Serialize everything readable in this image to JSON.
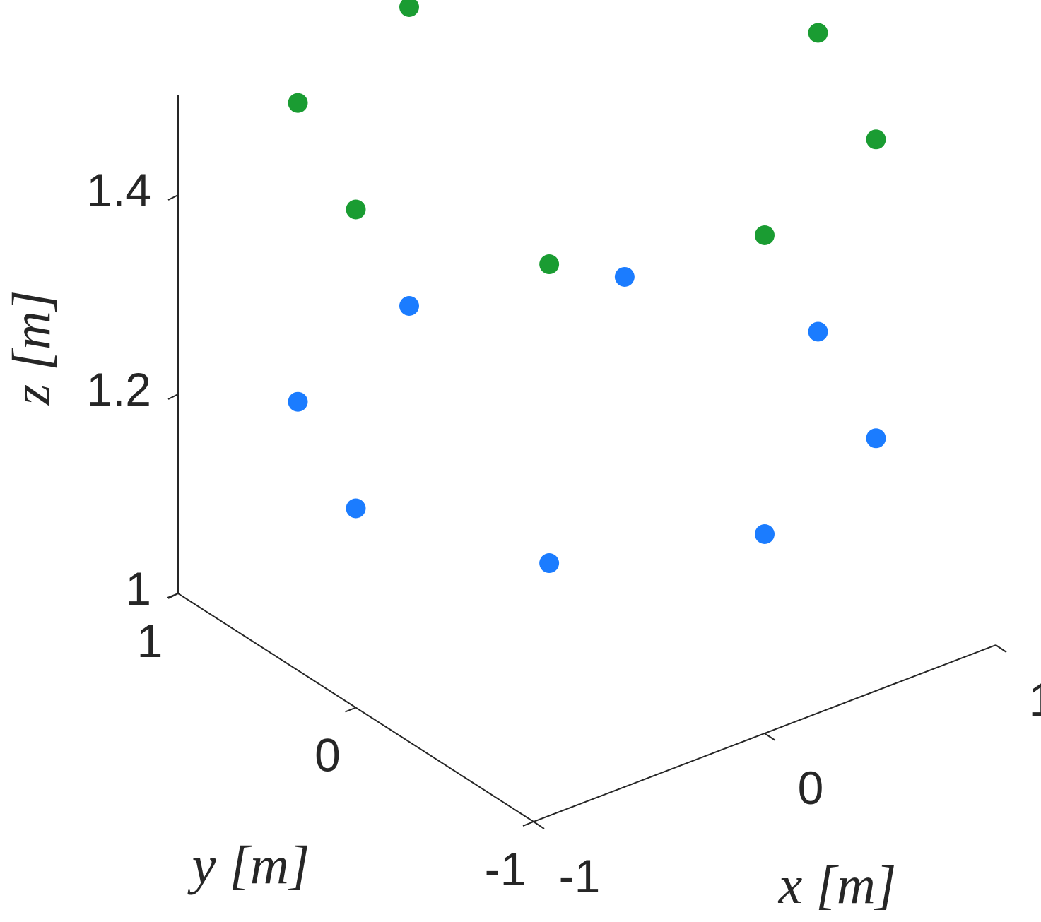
{
  "chart_data": {
    "type": "scatter3d",
    "xlabel": "x [m]",
    "ylabel": "y [m]",
    "zlabel": "z [m]",
    "xlim": [
      -1,
      1
    ],
    "ylim": [
      -1,
      1
    ],
    "zlim": [
      1,
      1.5
    ],
    "xticks": [
      "-1",
      "0",
      "1"
    ],
    "yticks": [
      "-1",
      "0",
      "1"
    ],
    "zticks": [
      "1",
      "1.2",
      "1.4"
    ],
    "series": [
      {
        "color": "#1a9c32",
        "points": [
          {
            "x": -1.0,
            "y": 0.0,
            "z": 1.5
          },
          {
            "x": -0.707,
            "y": 0.707,
            "z": 1.5
          },
          {
            "x": 0.0,
            "y": 1.0,
            "z": 1.5
          },
          {
            "x": 0.707,
            "y": 0.707,
            "z": 1.5
          },
          {
            "x": 1.0,
            "y": 0.0,
            "z": 1.5
          },
          {
            "x": 0.707,
            "y": -0.707,
            "z": 1.5
          },
          {
            "x": 0.0,
            "y": -1.0,
            "z": 1.5
          },
          {
            "x": -0.707,
            "y": -0.707,
            "z": 1.5
          }
        ]
      },
      {
        "color": "#1b7cff",
        "points": [
          {
            "x": -1.0,
            "y": 0.0,
            "z": 1.2
          },
          {
            "x": -0.707,
            "y": 0.707,
            "z": 1.2
          },
          {
            "x": 0.0,
            "y": 1.0,
            "z": 1.2
          },
          {
            "x": 0.707,
            "y": 0.707,
            "z": 1.2
          },
          {
            "x": 1.0,
            "y": 0.0,
            "z": 1.2
          },
          {
            "x": 0.707,
            "y": -0.707,
            "z": 1.2
          },
          {
            "x": 0.0,
            "y": -1.0,
            "z": 1.2
          },
          {
            "x": -0.707,
            "y": -0.707,
            "z": 1.2
          }
        ]
      }
    ]
  }
}
